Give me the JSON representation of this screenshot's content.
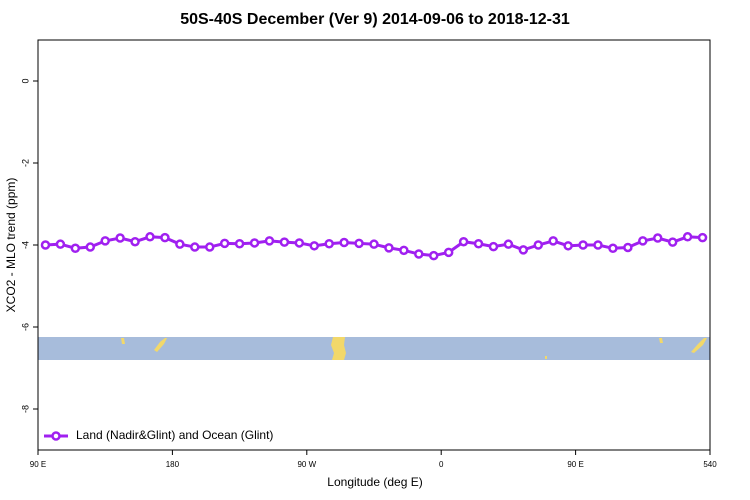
{
  "chart_data": {
    "type": "line",
    "title": "50S-40S December (Ver 9)   2014-09-06 to 2018-12-31",
    "x_label": "Longitude (deg E)",
    "y_label": "XCO2 - MLO trend (ppm)",
    "xlim": [
      90,
      540
    ],
    "ylim": [
      -9,
      1
    ],
    "xticks": [
      {
        "value": 90,
        "label": "90 E"
      },
      180,
      {
        "value": 270,
        "label": "90 W"
      },
      {
        "value": 360,
        "label": "0"
      },
      {
        "value": 450,
        "label": "90 E"
      },
      540
    ],
    "yticks": [
      0,
      -2,
      -4,
      -6,
      -8
    ],
    "legend_position": "bottom-left",
    "x": [
      95,
      105,
      115,
      125,
      135,
      145,
      155,
      165,
      175,
      185,
      195,
      205,
      215,
      225,
      235,
      245,
      255,
      265,
      275,
      285,
      295,
      305,
      315,
      325,
      335,
      345,
      355,
      365,
      375,
      385,
      395,
      405,
      415,
      425,
      435,
      445,
      455,
      465,
      475,
      485,
      495,
      505,
      515,
      525,
      535
    ],
    "series": [
      {
        "name": "Land (Nadir&Glint) and Ocean (Glint)",
        "color": "#a020f0",
        "values": [
          -4.0,
          -3.98,
          -4.08,
          -4.05,
          -3.9,
          -3.83,
          -3.92,
          -3.8,
          -3.82,
          -3.98,
          -4.05,
          -4.05,
          -3.96,
          -3.97,
          -3.95,
          -3.9,
          -3.93,
          -3.95,
          -4.02,
          -3.97,
          -3.94,
          -3.96,
          -3.98,
          -4.07,
          -4.13,
          -4.22,
          -4.26,
          -4.18,
          -3.92,
          -3.97,
          -4.04,
          -3.98,
          -4.12,
          -4.0,
          -3.9,
          -4.02,
          -4.0,
          -4.0,
          -4.08,
          -4.06,
          -3.9,
          -3.83,
          -3.93,
          -3.8,
          -3.82
        ]
      }
    ]
  }
}
